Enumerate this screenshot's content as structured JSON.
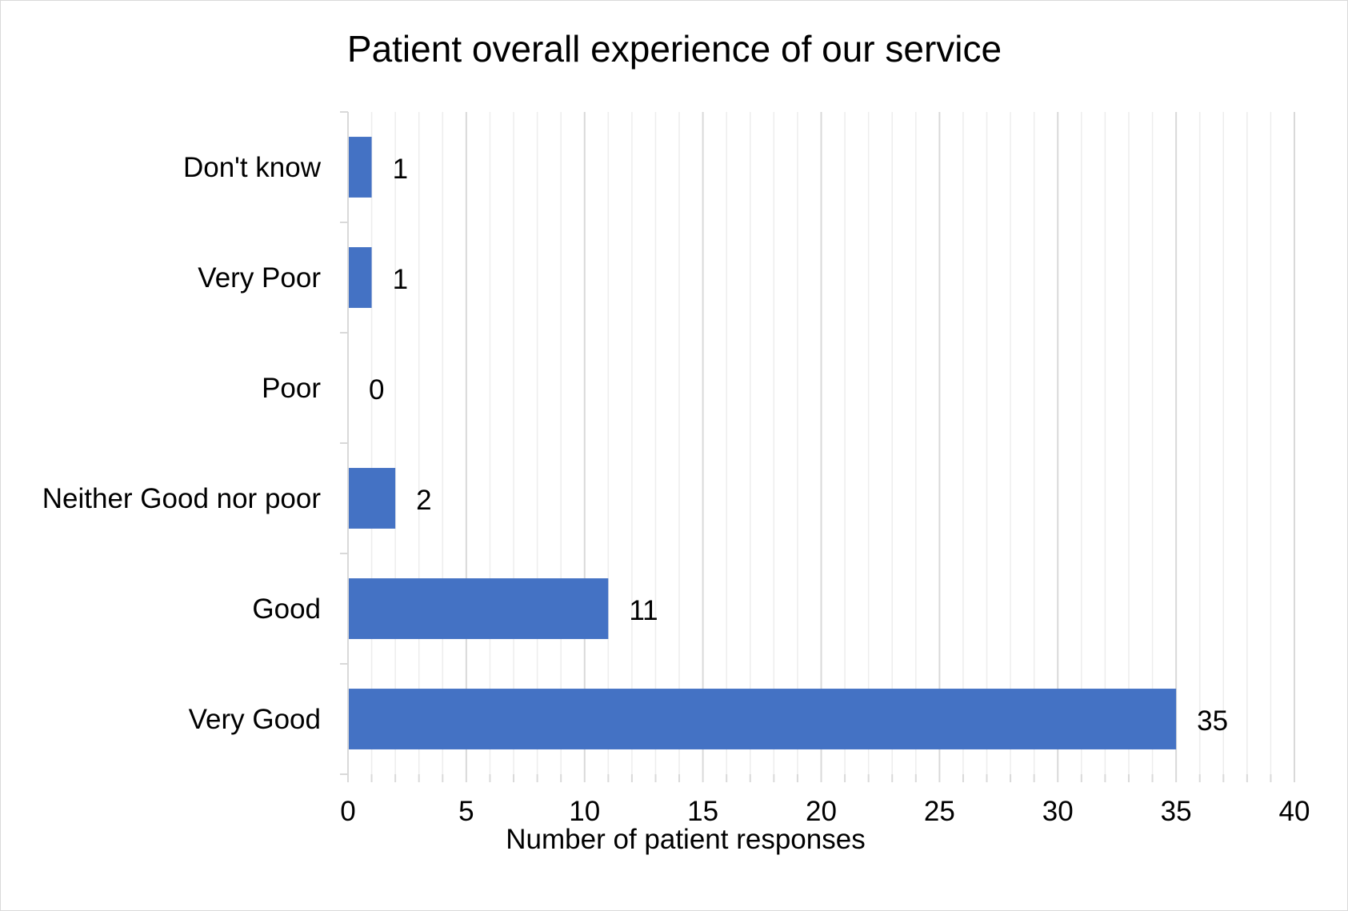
{
  "chart_data": {
    "type": "bar",
    "orientation": "horizontal",
    "title": "Patient overall experience of our service",
    "xlabel": "Number of patient responses",
    "ylabel": "",
    "categories": [
      "Don't know",
      "Very Poor",
      "Poor",
      "Neither Good nor poor",
      "Good",
      "Very Good"
    ],
    "values": [
      1,
      1,
      0,
      2,
      11,
      35
    ],
    "value_labels": [
      "1",
      "1",
      "0",
      "2",
      "11",
      "35"
    ],
    "xlim": [
      0,
      40
    ],
    "x_ticks": [
      "0",
      "5",
      "10",
      "15",
      "20",
      "25",
      "30",
      "35",
      "40"
    ],
    "grid": "vertical major and minor gridlines",
    "legend": "none",
    "colors": {
      "bar": "#4472C4",
      "major_grid": "#D9D9D9",
      "minor_grid": "#EDEDED",
      "axis": "#D9D9D9",
      "text": "#000000"
    }
  }
}
